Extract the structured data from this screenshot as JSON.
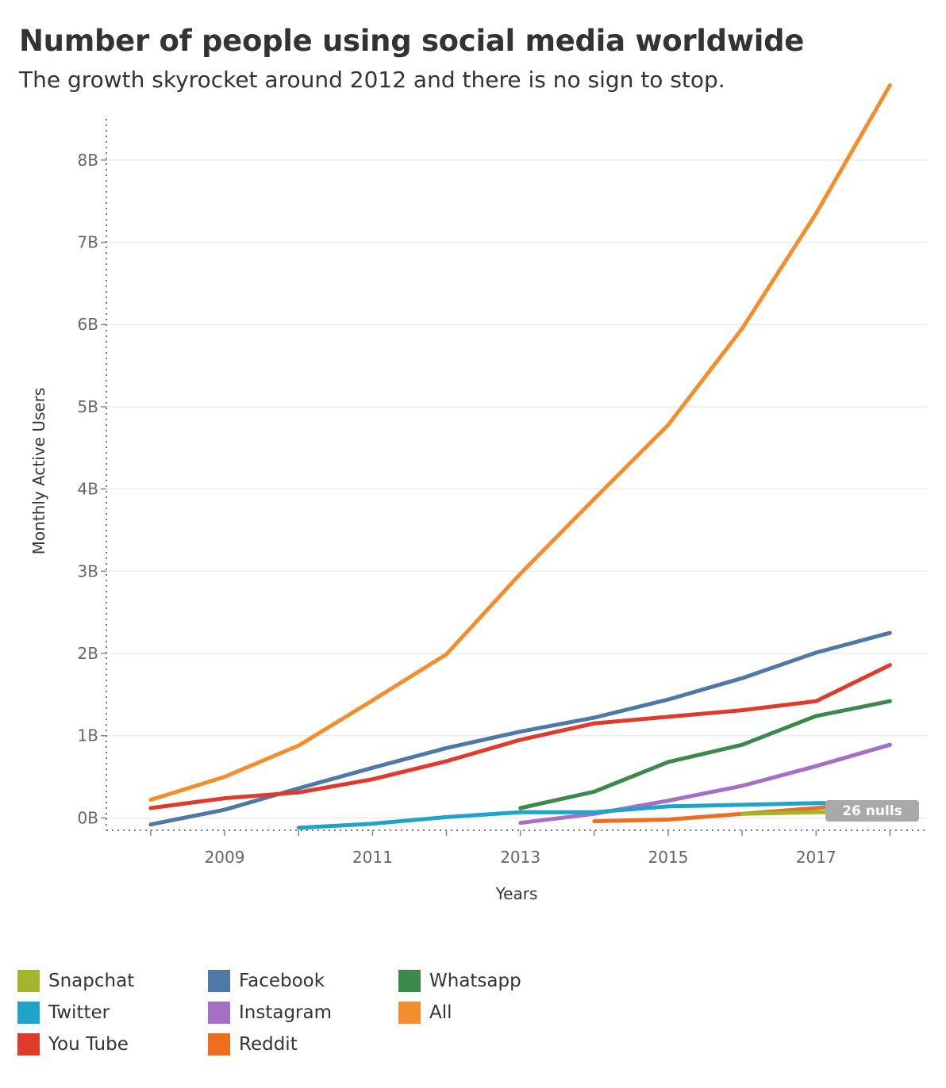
{
  "chart_data": {
    "type": "line",
    "title": "Number of people using social media worldwide",
    "subtitle": "The growth skyrocket around 2012 and there is no sign to stop.",
    "xlabel": "Years",
    "ylabel": "Monthly Active Users",
    "xlim": [
      2007.4,
      2018.5
    ],
    "ylim": [
      -0.15,
      8.5
    ],
    "x_ticks": [
      2009,
      2011,
      2013,
      2015,
      2017
    ],
    "y_ticks": [
      0,
      1,
      2,
      3,
      4,
      5,
      6,
      7,
      8
    ],
    "y_tick_labels": [
      "0B",
      "1B",
      "2B",
      "3B",
      "4B",
      "5B",
      "6B",
      "7B",
      "8B"
    ],
    "grid": true,
    "legend_position": "bottom",
    "null_indicator": "26 nulls",
    "series": [
      {
        "name": "All",
        "color": "#f28e2b",
        "points": [
          [
            2008,
            0.22
          ],
          [
            2009,
            0.5
          ],
          [
            2010,
            0.88
          ],
          [
            2011,
            1.43
          ],
          [
            2012,
            1.99
          ],
          [
            2013,
            2.97
          ],
          [
            2014,
            3.88
          ],
          [
            2015,
            4.78
          ],
          [
            2016,
            5.95
          ],
          [
            2017,
            7.35
          ],
          [
            2018,
            8.91
          ]
        ]
      },
      {
        "name": "Facebook",
        "color": "#4e79a7",
        "points": [
          [
            2008,
            -0.08
          ],
          [
            2009,
            0.1
          ],
          [
            2010,
            0.36
          ],
          [
            2011,
            0.61
          ],
          [
            2012,
            0.85
          ],
          [
            2013,
            1.05
          ],
          [
            2014,
            1.22
          ],
          [
            2015,
            1.44
          ],
          [
            2016,
            1.7
          ],
          [
            2017,
            2.01
          ],
          [
            2018,
            2.25
          ]
        ]
      },
      {
        "name": "You Tube",
        "color": "#e03a2c",
        "points": [
          [
            2008,
            0.12
          ],
          [
            2009,
            0.24
          ],
          [
            2010,
            0.31
          ],
          [
            2011,
            0.47
          ],
          [
            2012,
            0.69
          ],
          [
            2013,
            0.95
          ],
          [
            2014,
            1.15
          ],
          [
            2015,
            1.23
          ],
          [
            2016,
            1.31
          ],
          [
            2017,
            1.42
          ],
          [
            2018,
            1.86
          ]
        ]
      },
      {
        "name": "Whatsapp",
        "color": "#3c8a4b",
        "points": [
          [
            2013,
            0.12
          ],
          [
            2014,
            0.32
          ],
          [
            2015,
            0.68
          ],
          [
            2016,
            0.89
          ],
          [
            2017,
            1.24
          ],
          [
            2018,
            1.42
          ]
        ]
      },
      {
        "name": "Instagram",
        "color": "#a56ec7",
        "points": [
          [
            2013,
            -0.06
          ],
          [
            2014,
            0.05
          ],
          [
            2015,
            0.21
          ],
          [
            2016,
            0.39
          ],
          [
            2017,
            0.63
          ],
          [
            2018,
            0.89
          ]
        ]
      },
      {
        "name": "Twitter",
        "color": "#1ea3c9",
        "points": [
          [
            2010,
            -0.12
          ],
          [
            2011,
            -0.07
          ],
          [
            2012,
            0.01
          ],
          [
            2013,
            0.07
          ],
          [
            2014,
            0.07
          ],
          [
            2015,
            0.14
          ],
          [
            2016,
            0.16
          ],
          [
            2017,
            0.18
          ],
          [
            2018,
            0.18
          ]
        ]
      },
      {
        "name": "Reddit",
        "color": "#f06d1e",
        "points": [
          [
            2014,
            -0.04
          ],
          [
            2015,
            -0.02
          ],
          [
            2016,
            0.05
          ],
          [
            2017,
            0.12
          ],
          [
            2018,
            0.19
          ]
        ]
      },
      {
        "name": "Snapchat",
        "color": "#a2b52b",
        "points": [
          [
            2016,
            0.05
          ],
          [
            2017,
            0.07
          ],
          [
            2018,
            0.08
          ]
        ]
      }
    ]
  },
  "legend": [
    {
      "name": "Snapchat",
      "color": "#a2b52b"
    },
    {
      "name": "Facebook",
      "color": "#4e79a7"
    },
    {
      "name": "Whatsapp",
      "color": "#3c8a4b"
    },
    {
      "name": "Twitter",
      "color": "#1ea3c9"
    },
    {
      "name": "Instagram",
      "color": "#a56ec7"
    },
    {
      "name": "All",
      "color": "#f28e2b"
    },
    {
      "name": "You Tube",
      "color": "#e03a2c"
    },
    {
      "name": "Reddit",
      "color": "#f06d1e"
    }
  ]
}
